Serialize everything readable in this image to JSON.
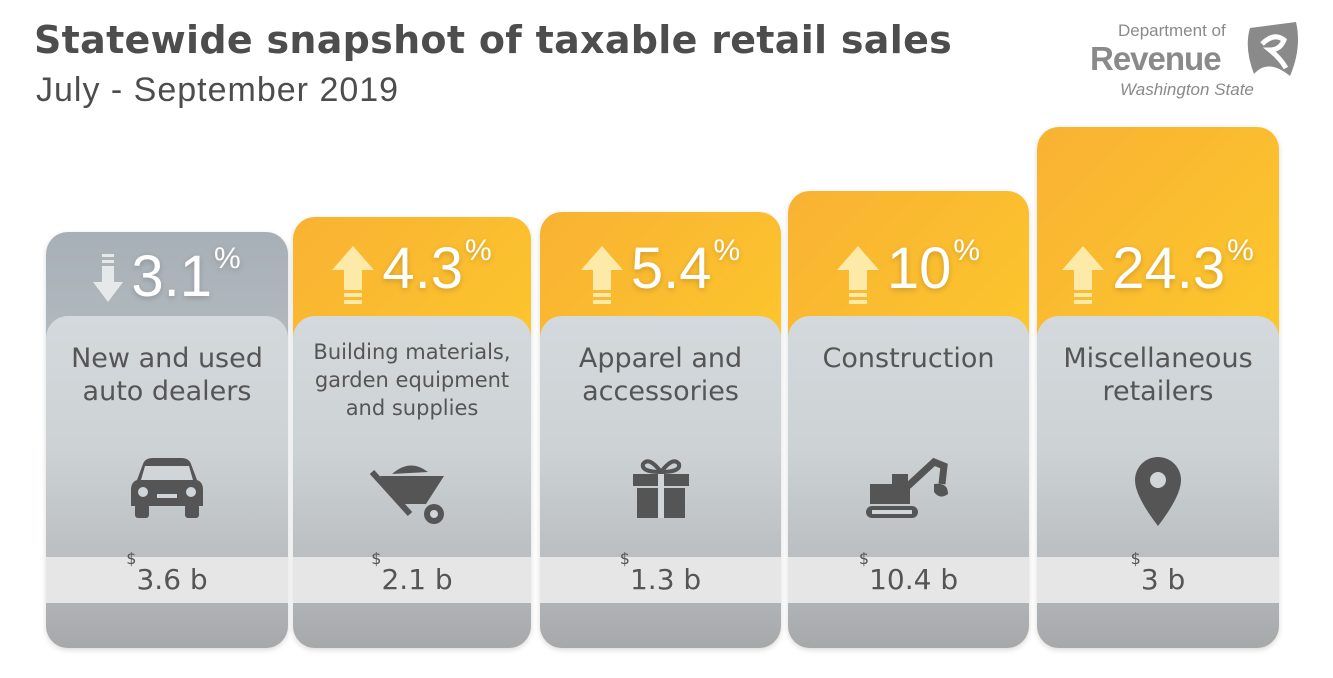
{
  "title": "Statewide snapshot of taxable retail sales",
  "subtitle": "July - September 2019",
  "logo": {
    "line1": "Department of",
    "line2": "Revenue",
    "line3": "Washington State"
  },
  "colors": {
    "up": "#fcc72c",
    "down": "#a7b0b6",
    "text": "#555555"
  },
  "chart_data": {
    "type": "bar",
    "categories": [
      "New and used auto dealers",
      "Building materials, garden equipment and supplies",
      "Apparel and accessories",
      "Construction",
      "Miscellaneous retailers"
    ],
    "series": [
      {
        "values": [
          -3.1,
          4.3,
          5.4,
          10,
          24.3
        ]
      }
    ],
    "cards": [
      {
        "category": "New and used auto dealers",
        "change_display": "3.1",
        "direction": "down",
        "currency": "$",
        "sales": "3.6 b",
        "icon": "car-icon"
      },
      {
        "category": "Building materials, garden equipment and supplies",
        "change_display": "4.3",
        "direction": "up",
        "currency": "$",
        "sales": "2.1 b",
        "icon": "wheelbarrow-icon"
      },
      {
        "category": "Apparel and accessories",
        "change_display": "5.4",
        "direction": "up",
        "currency": "$",
        "sales": "1.3 b",
        "icon": "gift-icon"
      },
      {
        "category": "Construction",
        "change_display": "10",
        "direction": "up",
        "currency": "$",
        "sales": "10.4 b",
        "icon": "excavator-icon"
      },
      {
        "category": "Miscellaneous retailers",
        "change_display": "24.3",
        "direction": "up",
        "currency": "$",
        "sales": "3 b",
        "icon": "map-pin-icon"
      }
    ],
    "percent_symbol": "%"
  }
}
